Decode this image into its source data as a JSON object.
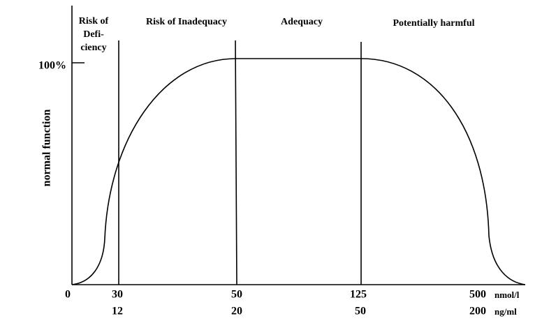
{
  "zones": [
    {
      "lines": [
        "Risk of",
        "Defi-",
        "ciency"
      ]
    },
    {
      "lines": [
        "Risk of Inadequacy"
      ]
    },
    {
      "lines": [
        "Adequacy"
      ]
    },
    {
      "lines": [
        "Potentially harmful"
      ]
    }
  ],
  "y_axis": {
    "label": "normal function",
    "tick": "100%"
  },
  "x_axis": {
    "origin": "0",
    "rows": [
      {
        "values": [
          "30",
          "50",
          "125",
          "500"
        ],
        "unit": "nmol/l"
      },
      {
        "values": [
          "12",
          "20",
          "50",
          "200"
        ],
        "unit": "ng/ml"
      }
    ]
  }
}
